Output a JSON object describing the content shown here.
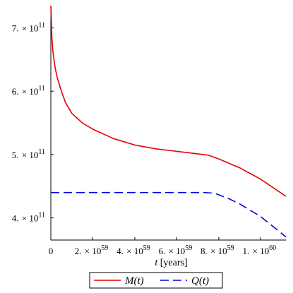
{
  "chart_data": {
    "type": "line",
    "xlabel": "t [years]",
    "ylabel": "",
    "xlim": [
      0,
      1.12e+60
    ],
    "ylim": [
      365000000000.0,
      735000000000.0
    ],
    "x_ticks": [
      {
        "value": 2e+59,
        "mantissa": "2.",
        "exponent": "59"
      },
      {
        "value": 4e+59,
        "mantissa": "4.",
        "exponent": "59"
      },
      {
        "value": 6e+59,
        "mantissa": "6.",
        "exponent": "59"
      },
      {
        "value": 8e+59,
        "mantissa": "8.",
        "exponent": "59"
      },
      {
        "value": 1e+60,
        "mantissa": "1.",
        "exponent": "60"
      }
    ],
    "x_origin_label": "0",
    "y_ticks": [
      {
        "value": 400000000000.0,
        "mantissa": "4.",
        "exponent": "11"
      },
      {
        "value": 500000000000.0,
        "mantissa": "5.",
        "exponent": "11"
      },
      {
        "value": 600000000000.0,
        "mantissa": "6.",
        "exponent": "11"
      },
      {
        "value": 700000000000.0,
        "mantissa": "7.",
        "exponent": "11"
      }
    ],
    "grid": false,
    "legend_position": "bottom",
    "series": [
      {
        "name": "M(t)",
        "color": "#e60000",
        "style": "solid",
        "points": [
          [
            0,
            735000000000.0
          ],
          [
            5e+57,
            685000000000.0
          ],
          [
            1e+58,
            662000000000.0
          ],
          [
            2e+58,
            638000000000.0
          ],
          [
            3e+58,
            622000000000.0
          ],
          [
            5e+58,
            600000000000.0
          ],
          [
            7e+58,
            582000000000.0
          ],
          [
            1e+59,
            565000000000.0
          ],
          [
            1.5e+59,
            550000000000.0
          ],
          [
            2e+59,
            540000000000.0
          ],
          [
            3e+59,
            525000000000.0
          ],
          [
            4e+59,
            515000000000.0
          ],
          [
            5e+59,
            509000000000.0
          ],
          [
            6e+59,
            505000000000.0
          ],
          [
            7e+59,
            501000000000.0
          ],
          [
            7.5e+59,
            499000000000.0
          ],
          [
            8e+59,
            493000000000.0
          ],
          [
            9e+59,
            479000000000.0
          ],
          [
            1e+60,
            461000000000.0
          ],
          [
            1.12e+60,
            434000000000.0
          ]
        ]
      },
      {
        "name": "Q(t)",
        "color": "#0000e6",
        "style": "dashed",
        "points": [
          [
            0,
            440000000000.0
          ],
          [
            2e+59,
            440000000000.0
          ],
          [
            4e+59,
            440000000000.0
          ],
          [
            6e+59,
            440000000000.0
          ],
          [
            7.3e+59,
            440000000000.0
          ],
          [
            7.8e+59,
            439000000000.0
          ],
          [
            8.5e+59,
            430000000000.0
          ],
          [
            9e+59,
            422000000000.0
          ],
          [
            1e+60,
            402000000000.0
          ],
          [
            1.12e+60,
            370000000000.0
          ]
        ]
      }
    ],
    "legend": [
      {
        "label": "M(t)",
        "color": "#e60000",
        "style": "solid"
      },
      {
        "label": "Q(t)",
        "color": "#0000e6",
        "style": "dashed"
      }
    ]
  }
}
